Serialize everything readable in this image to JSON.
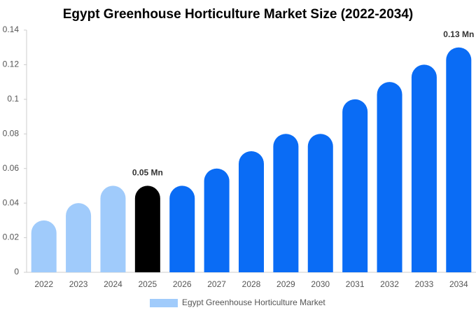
{
  "chart_data": {
    "type": "bar",
    "title": "Egypt Greenhouse Horticulture Market Size (2022-2034)",
    "categories": [
      "2022",
      "2023",
      "2024",
      "2025",
      "2026",
      "2027",
      "2028",
      "2029",
      "2030",
      "2031",
      "2032",
      "2033",
      "2034"
    ],
    "series": [
      {
        "name": "Egypt Greenhouse Horticulture Market",
        "color": "#a0cbfb",
        "values": [
          0.03,
          0.04,
          0.05,
          0.05,
          0.05,
          0.06,
          0.07,
          0.08,
          0.08,
          0.1,
          0.11,
          0.12,
          0.13
        ],
        "value_labels": [
          null,
          null,
          null,
          "0.05 Mn",
          null,
          null,
          null,
          null,
          null,
          null,
          null,
          null,
          "0.13 Mn"
        ]
      }
    ],
    "bar_colors": [
      "#a0cbfb",
      "#a0cbfb",
      "#a0cbfb",
      "#000000",
      "#0a6cf5",
      "#0a6cf5",
      "#0a6cf5",
      "#0a6cf5",
      "#0a6cf5",
      "#0a6cf5",
      "#0a6cf5",
      "#0a6cf5",
      "#0a6cf5"
    ],
    "ylim": [
      0,
      0.14
    ],
    "yticks": [
      0,
      0.02,
      0.04,
      0.06,
      0.08,
      0.1,
      0.12,
      0.14
    ],
    "grid": false
  }
}
